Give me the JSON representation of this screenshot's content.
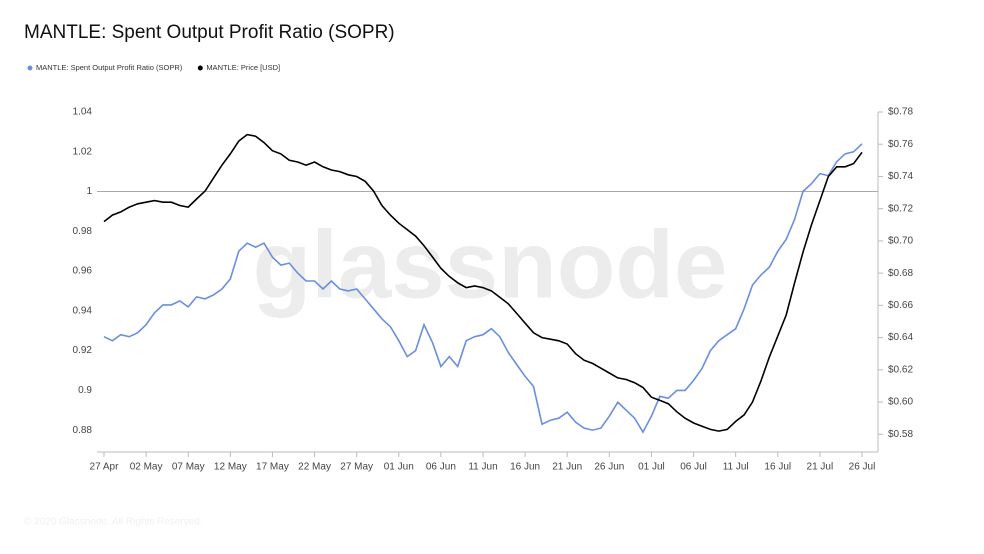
{
  "chart_data": {
    "type": "line",
    "title": "MANTLE: Spent Output Profit Ratio (SOPR)",
    "watermark": "glassnode",
    "footer": "© 2020 Glassnode. All Rights Reserved.",
    "categories": [
      "27 Apr",
      null,
      null,
      null,
      null,
      "02 May",
      null,
      null,
      null,
      null,
      "07 May",
      null,
      null,
      null,
      null,
      "12 May",
      null,
      null,
      null,
      null,
      "17 May",
      null,
      null,
      null,
      null,
      "22 May",
      null,
      null,
      null,
      null,
      "27 May",
      null,
      null,
      null,
      null,
      "01 Jun",
      null,
      null,
      null,
      null,
      "06 Jun",
      null,
      null,
      null,
      null,
      "11 Jun",
      null,
      null,
      null,
      null,
      "16 Jun",
      null,
      null,
      null,
      null,
      "21 Jun",
      null,
      null,
      null,
      null,
      "26 Jun",
      null,
      null,
      null,
      null,
      "01 Jul",
      null,
      null,
      null,
      null,
      "06 Jul",
      null,
      null,
      null,
      null,
      "11 Jul",
      null,
      null,
      null,
      null,
      "16 Jul",
      null,
      null,
      null,
      null,
      "21 Jul",
      null,
      null,
      null,
      null,
      "26 Jul"
    ],
    "series": [
      {
        "name": "MANTLE: Spent Output Profit Ratio (SOPR)",
        "color": "#6a8ee0",
        "axis": "y",
        "values": [
          0.927,
          0.925,
          0.928,
          0.927,
          0.929,
          0.933,
          0.939,
          0.943,
          0.943,
          0.945,
          0.942,
          0.947,
          0.946,
          0.948,
          0.951,
          0.956,
          0.97,
          0.974,
          0.972,
          0.974,
          0.967,
          0.963,
          0.964,
          0.959,
          0.955,
          0.955,
          0.951,
          0.955,
          0.951,
          0.95,
          0.951,
          0.946,
          0.941,
          0.936,
          0.932,
          0.925,
          0.917,
          0.92,
          0.933,
          0.924,
          0.912,
          0.917,
          0.912,
          0.925,
          0.927,
          0.928,
          0.931,
          0.927,
          0.919,
          0.913,
          0.907,
          0.902,
          0.883,
          0.885,
          0.886,
          0.889,
          0.884,
          0.881,
          0.88,
          0.881,
          0.887,
          0.894,
          0.89,
          0.886,
          0.879,
          0.887,
          0.897,
          0.896,
          0.9,
          0.9,
          0.905,
          0.911,
          0.92,
          0.925,
          0.928,
          0.931,
          0.941,
          0.953,
          0.958,
          0.962,
          0.97,
          0.976,
          0.986,
          1.0,
          1.004,
          1.009,
          1.008,
          1.015,
          1.019,
          1.02,
          1.024
        ]
      },
      {
        "name": "MANTLE: Price [USD]",
        "color": "#000000",
        "axis": "y2",
        "values": [
          0.712,
          0.716,
          0.718,
          0.721,
          0.723,
          0.724,
          0.725,
          0.724,
          0.724,
          0.722,
          0.721,
          0.726,
          0.731,
          0.739,
          0.747,
          0.754,
          0.762,
          0.766,
          0.765,
          0.761,
          0.756,
          0.754,
          0.75,
          0.749,
          0.747,
          0.749,
          0.746,
          0.744,
          0.743,
          0.741,
          0.74,
          0.737,
          0.731,
          0.722,
          0.716,
          0.711,
          0.707,
          0.703,
          0.697,
          0.69,
          0.683,
          0.678,
          0.674,
          0.671,
          0.672,
          0.671,
          0.669,
          0.665,
          0.661,
          0.655,
          0.649,
          0.643,
          0.64,
          0.639,
          0.638,
          0.636,
          0.63,
          0.626,
          0.624,
          0.621,
          0.618,
          0.615,
          0.614,
          0.612,
          0.609,
          0.603,
          0.601,
          0.599,
          0.594,
          0.59,
          0.587,
          0.585,
          0.583,
          0.582,
          0.583,
          0.588,
          0.592,
          0.6,
          0.613,
          0.628,
          0.641,
          0.654,
          0.674,
          0.693,
          0.71,
          0.725,
          0.74,
          0.746,
          0.746,
          0.748,
          0.755
        ]
      }
    ],
    "ylim": [
      0.869,
      1.04
    ],
    "yticks": [
      0.88,
      0.9,
      0.92,
      0.94,
      0.96,
      0.98,
      1,
      1.02,
      1.04
    ],
    "y2lim": [
      0.569,
      0.78
    ],
    "y2ticks": [
      {
        "value": 0.58,
        "label": "$0.58"
      },
      {
        "value": 0.6,
        "label": "$0.60"
      },
      {
        "value": 0.62,
        "label": "$0.62"
      },
      {
        "value": 0.64,
        "label": "$0.64"
      },
      {
        "value": 0.66,
        "label": "$0.66"
      },
      {
        "value": 0.68,
        "label": "$0.68"
      },
      {
        "value": 0.7,
        "label": "$0.70"
      },
      {
        "value": 0.72,
        "label": "$0.72"
      },
      {
        "value": 0.74,
        "label": "$0.74"
      },
      {
        "value": 0.76,
        "label": "$0.76"
      },
      {
        "value": 0.78,
        "label": "$0.78"
      }
    ],
    "reference_line": 1
  }
}
